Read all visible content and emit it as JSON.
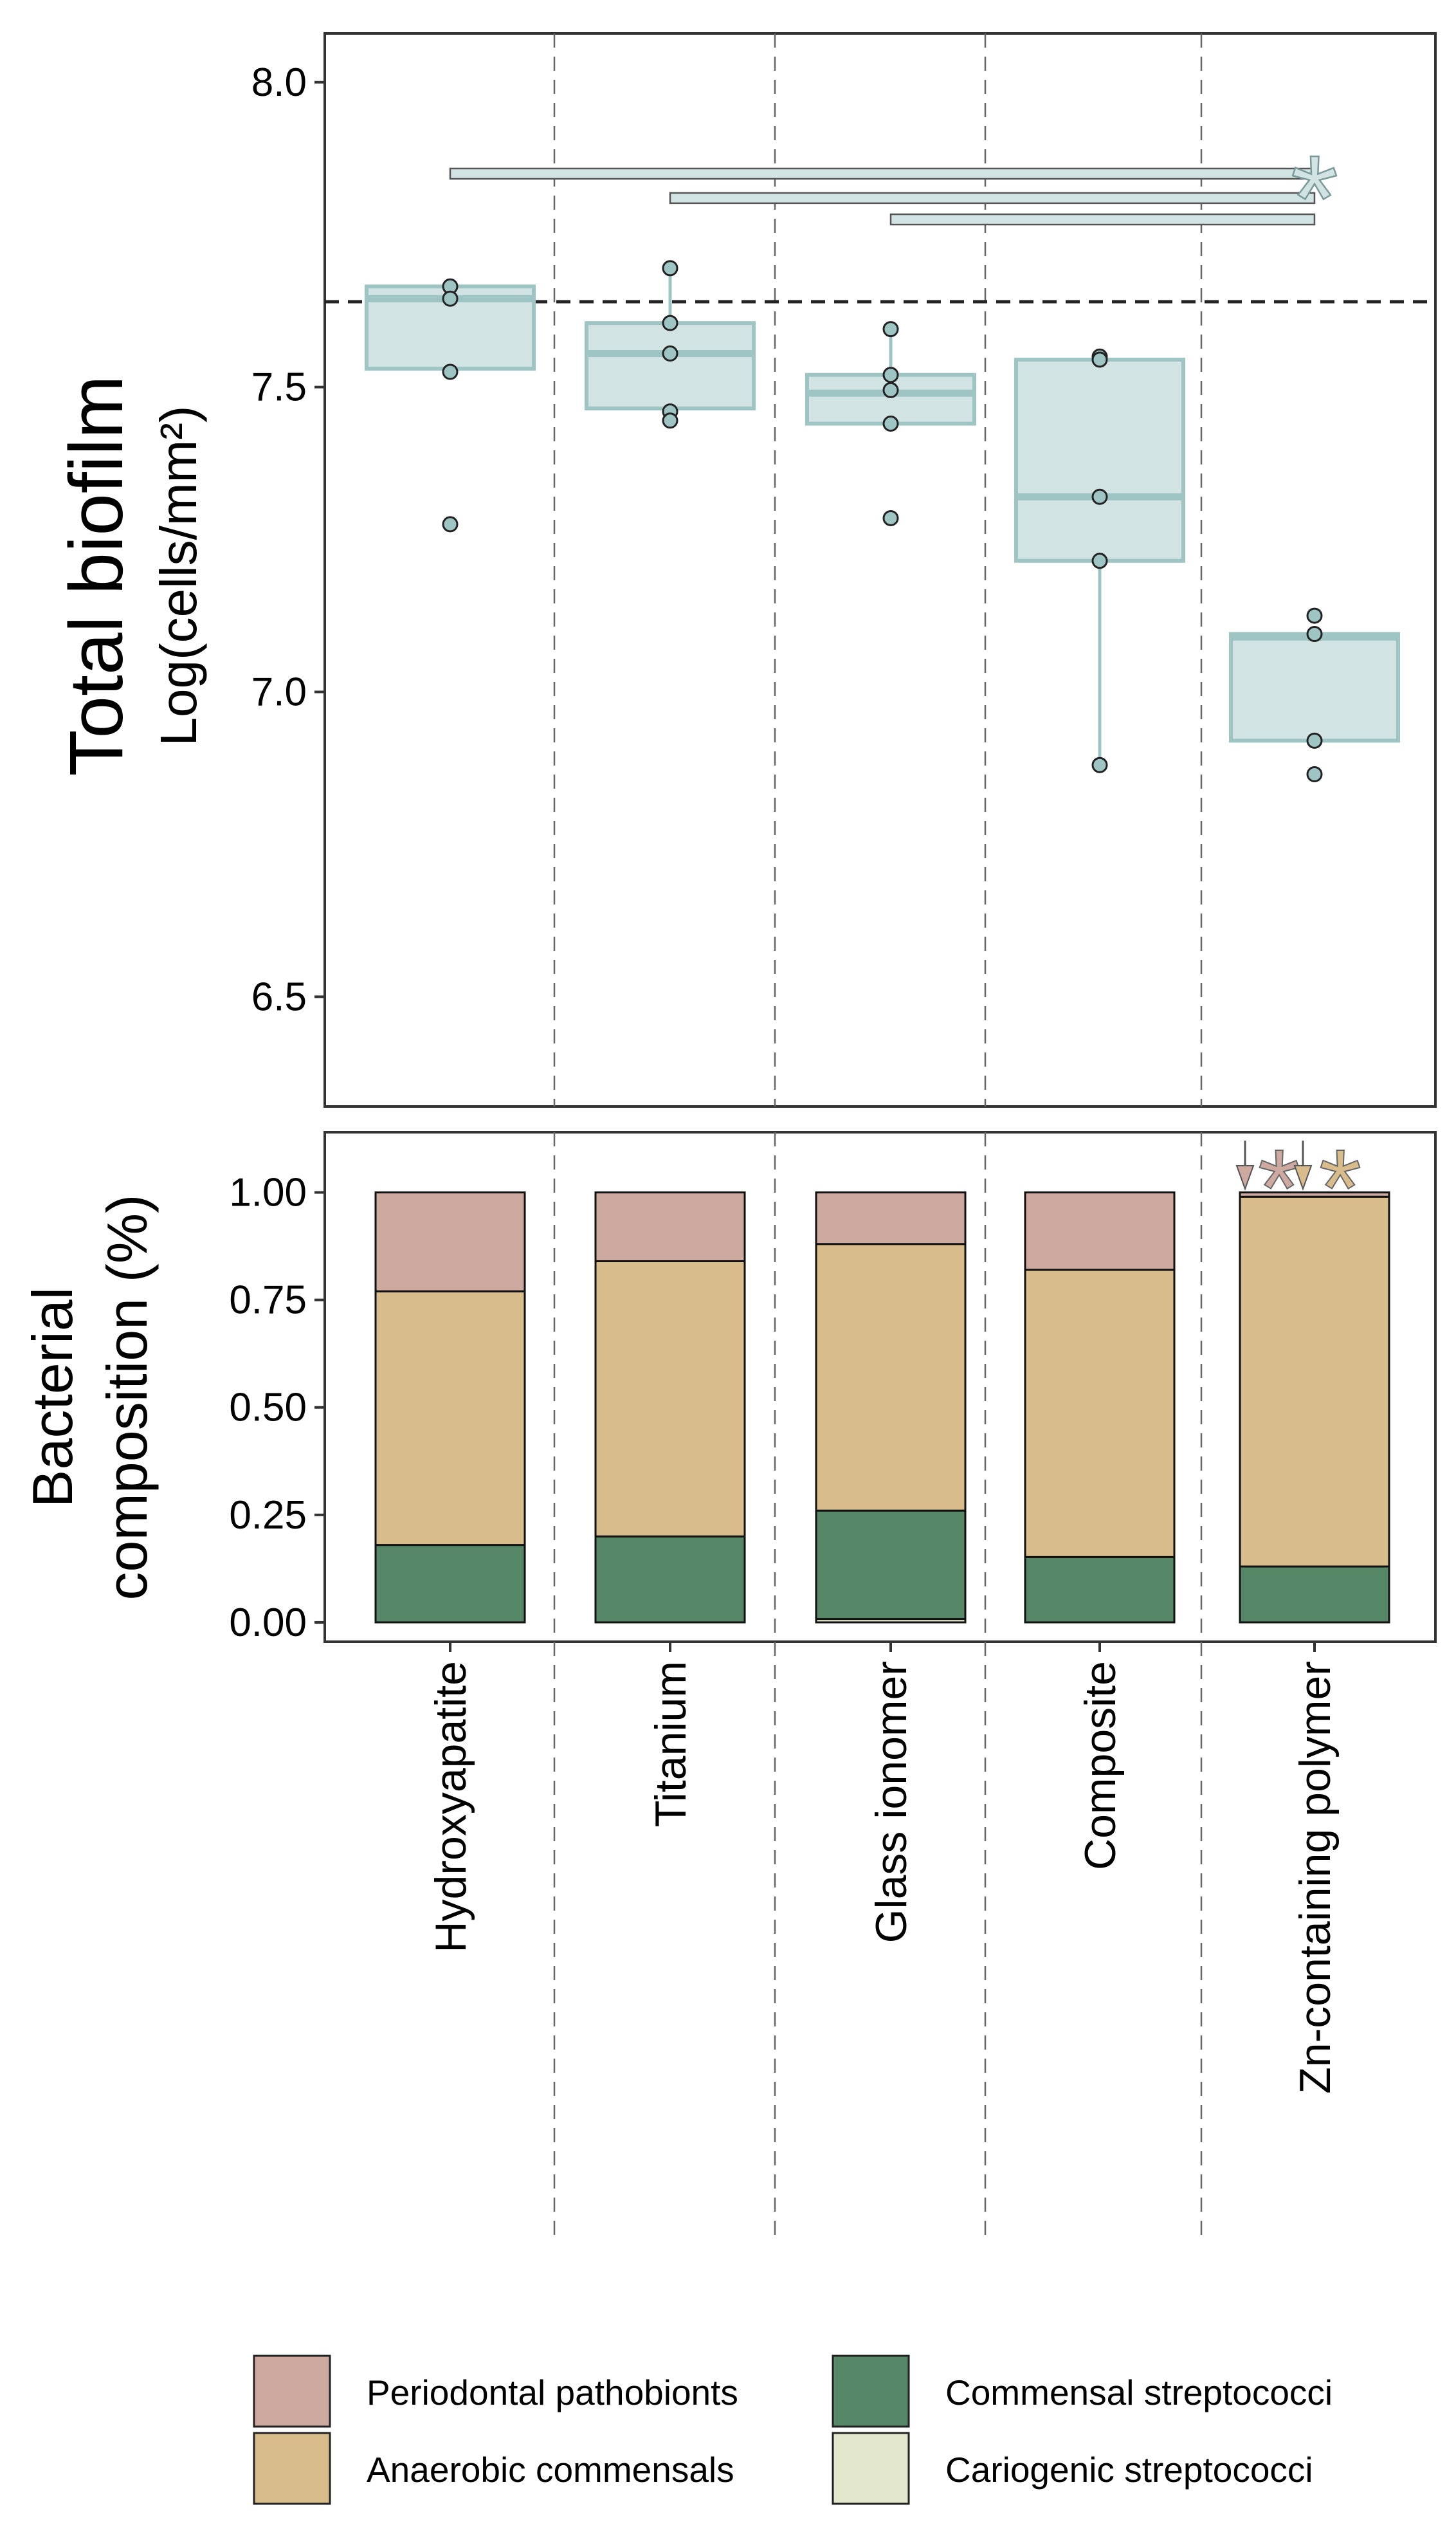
{
  "chart_data": [
    {
      "type": "box",
      "title": "",
      "ylabel": "Total biofilm",
      "ylabel_sub": "Log(cells/mm²)",
      "xlabel": "",
      "ylim": [
        6.32,
        8.08
      ],
      "yticks": [
        "6.5",
        "7.0",
        "7.5",
        "8.0"
      ],
      "ytick_values": [
        6.5,
        7.0,
        7.5,
        8.0
      ],
      "grid": false,
      "reference_line": 7.64,
      "categories": [
        "Hydroxyapatite",
        "Titanium",
        "Glass ionomer",
        "Composite",
        "Zn-containing polymer"
      ],
      "boxes": [
        {
          "q1": 7.53,
          "median": 7.645,
          "q3": 7.665,
          "whisker_low": 7.53,
          "whisker_high": 7.665,
          "points": [
            7.665,
            7.645,
            7.525,
            7.275
          ]
        },
        {
          "q1": 7.465,
          "median": 7.555,
          "q3": 7.605,
          "whisker_low": 7.445,
          "whisker_high": 7.695,
          "points": [
            7.695,
            7.605,
            7.555,
            7.46,
            7.445
          ]
        },
        {
          "q1": 7.44,
          "median": 7.49,
          "q3": 7.52,
          "whisker_low": 7.44,
          "whisker_high": 7.595,
          "points": [
            7.595,
            7.52,
            7.495,
            7.44,
            7.285
          ]
        },
        {
          "q1": 7.215,
          "median": 7.32,
          "q3": 7.545,
          "whisker_low": 6.88,
          "whisker_high": 7.545,
          "points": [
            7.55,
            7.545,
            7.32,
            7.215,
            6.88
          ]
        },
        {
          "q1": 6.92,
          "median": 7.09,
          "q3": 7.095,
          "whisker_low": 6.92,
          "whisker_high": 7.095,
          "points": [
            7.125,
            7.095,
            6.92,
            6.865
          ]
        }
      ],
      "significance": {
        "symbol": "*",
        "brackets": [
          {
            "from": "Hydroxyapatite",
            "to": "Zn-containing polymer"
          },
          {
            "from": "Titanium",
            "to": "Zn-containing polymer"
          },
          {
            "from": "Glass ionomer",
            "to": "Zn-containing polymer"
          }
        ]
      },
      "colors": {
        "box_fill": "#d2e3e3",
        "box_line": "#9ec4c4",
        "point_fill": "#9ec4c4"
      }
    },
    {
      "type": "bar",
      "stacked": true,
      "title": "",
      "ylabel_line1": "Bacterial",
      "ylabel_line2": "composition (%)",
      "ylim": [
        -0.045,
        1.14
      ],
      "yticks": [
        "0.00",
        "0.25",
        "0.50",
        "0.75",
        "1.00"
      ],
      "ytick_values": [
        0,
        0.25,
        0.5,
        0.75,
        1.0
      ],
      "grid": false,
      "categories": [
        "Hydroxyapatite",
        "Titanium",
        "Glass ionomer",
        "Composite",
        "Zn-containing polymer"
      ],
      "series": [
        {
          "name": "Cariogenic streptococci",
          "color": "#e3e7cc",
          "values": [
            0.0,
            0.0,
            0.008,
            0.0,
            0.0
          ]
        },
        {
          "name": "Commensal streptococci",
          "color": "#568767",
          "values": [
            0.18,
            0.2,
            0.252,
            0.152,
            0.13
          ]
        },
        {
          "name": "Anaerobic commensals",
          "color": "#d9bc8c",
          "values": [
            0.59,
            0.64,
            0.62,
            0.668,
            0.86
          ]
        },
        {
          "name": "Periodontal pathobionts",
          "color": "#cda9a0",
          "values": [
            0.23,
            0.16,
            0.12,
            0.18,
            0.01
          ]
        }
      ],
      "annotations": [
        {
          "category": "Zn-containing polymer",
          "series": "Periodontal pathobionts",
          "arrow": "down",
          "symbol": "*",
          "color": "#cda9a0"
        },
        {
          "category": "Zn-containing polymer",
          "series": "Anaerobic commensals",
          "arrow": "down",
          "symbol": "*",
          "color": "#d9bc8c"
        }
      ]
    }
  ],
  "legend": {
    "placement": "bottom",
    "items": [
      {
        "label": "Periodontal pathobionts",
        "color": "#cda9a0"
      },
      {
        "label": "Commensal streptococci",
        "color": "#568767"
      },
      {
        "label": "Anaerobic commensals",
        "color": "#d9bc8c"
      },
      {
        "label": "Cariogenic streptococci",
        "color": "#e3e7cc"
      }
    ]
  }
}
